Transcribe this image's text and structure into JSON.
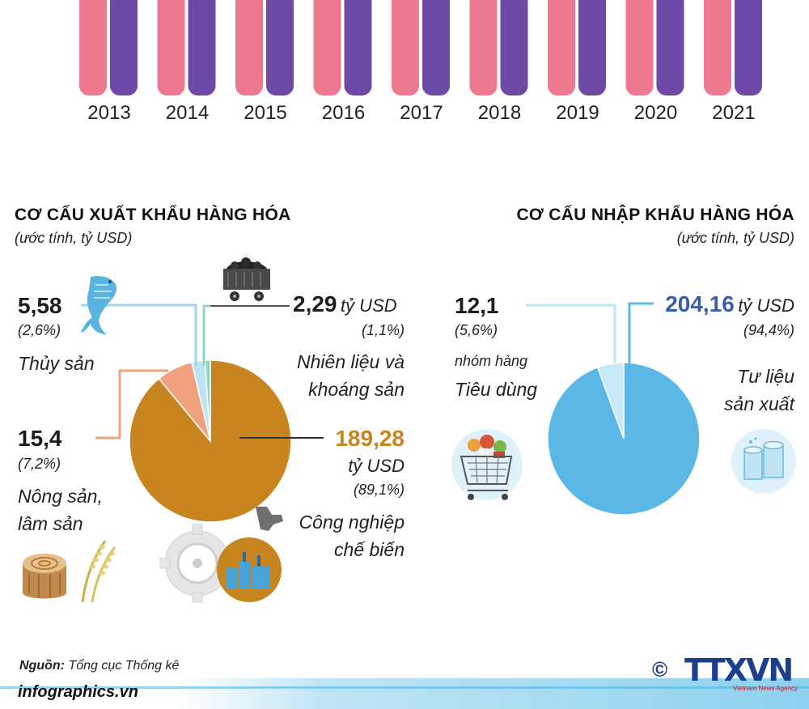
{
  "top_chart": {
    "years": [
      "2013",
      "2014",
      "2015",
      "2016",
      "2017",
      "2018",
      "2019",
      "2020",
      "2021"
    ],
    "colors": {
      "pink": "#ee7890",
      "purple": "#6c4aa6"
    }
  },
  "export": {
    "title": "CƠ CẤU XUẤT KHẨU HÀNG HÓA",
    "subtitle": "(ước tính, tỷ USD)",
    "fishery": {
      "value": "5,58",
      "pct": "(2,6%)",
      "label": "Thủy sản"
    },
    "fuel": {
      "value": "2,29",
      "unit": "tỷ USD",
      "pct": "(1,1%)",
      "label_line1": "Nhiên liệu và",
      "label_line2": "khoáng sản"
    },
    "agri": {
      "value": "15,4",
      "pct": "(7,2%)",
      "label_line1": "Nông sản,",
      "label_line2": "lâm sản"
    },
    "industry": {
      "value": "189,28",
      "unit": "tỷ USD",
      "pct": "(89,1%)",
      "label_line1": "Công nghiệp",
      "label_line2": "chế biến"
    }
  },
  "import": {
    "title": "CƠ CẤU NHẬP KHẨU HÀNG HÓA",
    "subtitle": "(ước tính, tỷ USD)",
    "consumer": {
      "value": "12,1",
      "pct": "(5,6%)",
      "label_line1": "nhóm hàng",
      "label_line2": "Tiêu dùng"
    },
    "production": {
      "value": "204,16",
      "unit": "tỷ USD",
      "pct": "(94,4%)",
      "label_line1": "Tư liệu",
      "label_line2": "sản xuất"
    }
  },
  "chart_data": [
    {
      "type": "pie",
      "title": "CƠ CẤU XUẤT KHẨU HÀNG HÓA",
      "subtitle": "(ước tính, tỷ USD)",
      "categories": [
        "Công nghiệp chế biến",
        "Nông sản, lâm sản",
        "Thủy sản",
        "Nhiên liệu và khoáng sản"
      ],
      "values": [
        189.28,
        15.4,
        5.58,
        2.29
      ],
      "percents": [
        89.1,
        7.2,
        2.6,
        1.1
      ],
      "colors": [
        "#c8841e",
        "#f0a27e",
        "#bde4f0",
        "#8ed4c8"
      ]
    },
    {
      "type": "pie",
      "title": "CƠ CẤU NHẬP KHẨU HÀNG HÓA",
      "subtitle": "(ước tính, tỷ USD)",
      "categories": [
        "Tư liệu sản xuất",
        "nhóm hàng Tiêu dùng"
      ],
      "values": [
        204.16,
        12.1
      ],
      "percents": [
        94.4,
        5.6
      ],
      "colors": [
        "#5bb8e6",
        "#c7eaf8"
      ]
    }
  ],
  "footer": {
    "source_label": "Nguồn:",
    "source_text": "Tổng cục Thống kê",
    "site": "infographics.vn",
    "copyright": "©",
    "brand": "TTXVN",
    "brand_sub": "Vietnam News Agency"
  }
}
